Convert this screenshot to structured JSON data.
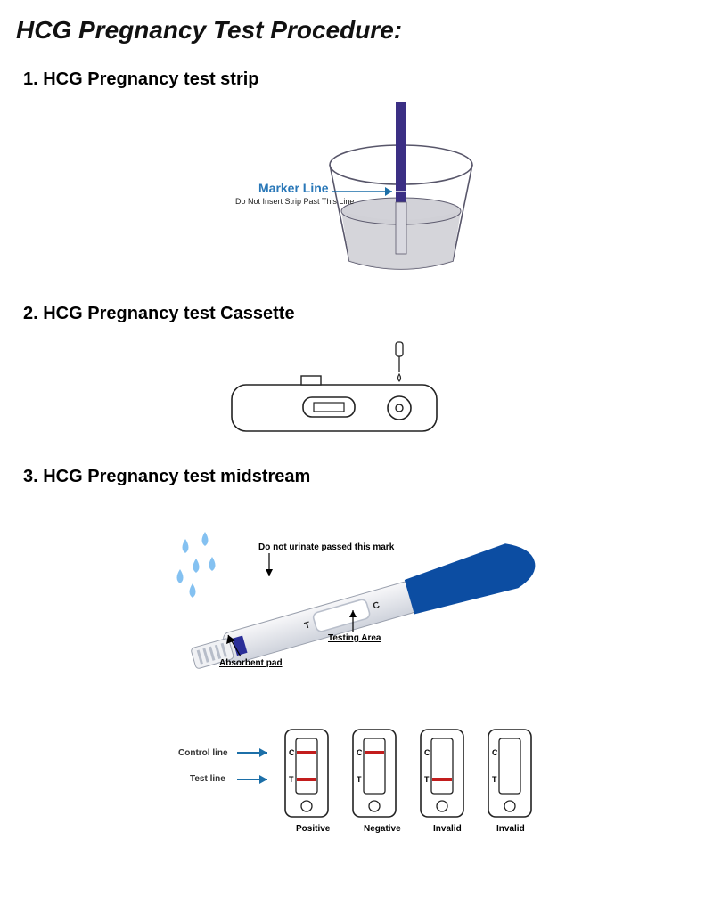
{
  "title": "HCG Pregnancy Test Procedure:",
  "sections": {
    "strip": "1. HCG Pregnancy test strip",
    "cassette": "2. HCG Pregnancy test Cassette",
    "midstream": "3. HCG Pregnancy test midstream"
  },
  "strip_fig": {
    "marker_line_label": "Marker Line",
    "marker_line_sub": "Do Not Insert Strip Past This Line",
    "cup_stroke": "#58566a",
    "cup_fill": "#d0d0d6",
    "strip_color": "#3b2f84",
    "strip_tip": "#d9d9e0",
    "arrow_color": "#1c6fa8",
    "fontsize_label": 14,
    "fontsize_sub": 9
  },
  "cassette_fig": {
    "stroke": "#222222",
    "dropper_stroke": "#222222"
  },
  "midstream_fig": {
    "handle_color": "#0c4da2",
    "body_top": "#f7f7f9",
    "body_bottom": "#cfd3dc",
    "window_shadow": "#b9bfcb",
    "indicator": "#2a2e98",
    "tip_slot": "#b7bdc9",
    "drop_color": "#6fb6ef",
    "text": "#111111",
    "labels": {
      "do_not": "Do not urinate passed this mark",
      "testing_area": "Testing Area",
      "absorbent": "Absorbent pad",
      "T": "T",
      "C": "C"
    }
  },
  "results_fig": {
    "stroke": "#222222",
    "line_red": "#c21d1d",
    "label_color": "#333333",
    "arrow_color": "#1c6fa8",
    "labels": {
      "control": "Control line",
      "test": "Test line",
      "C": "C",
      "T": "T"
    },
    "cards": [
      {
        "name": "Positive",
        "c": true,
        "t": true
      },
      {
        "name": "Negative",
        "c": true,
        "t": false
      },
      {
        "name": "Invalid",
        "c": false,
        "t": true
      },
      {
        "name": "Invalid",
        "c": false,
        "t": false
      }
    ]
  }
}
